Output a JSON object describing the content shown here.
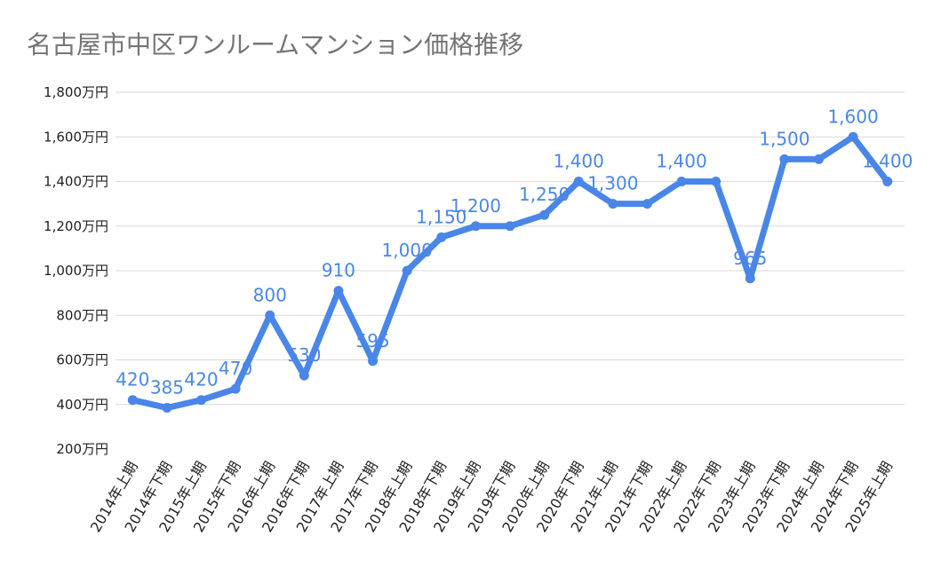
{
  "chart_data": {
    "type": "line",
    "title": "名古屋市中区ワンルームマンション価格推移",
    "xlabel": "",
    "ylabel": "",
    "ylim": [
      200,
      1800
    ],
    "y_ticks": [
      "200万円",
      "400万円",
      "600万円",
      "800万円",
      "1,000万円",
      "1,200万円",
      "1,400万円",
      "1,600万円",
      "1,800万円"
    ],
    "y_tick_values": [
      200,
      400,
      600,
      800,
      1000,
      1200,
      1400,
      1600,
      1800
    ],
    "grid": true,
    "legend": "none",
    "color": "#4a86e8",
    "categories": [
      "2014年上期",
      "2014年下期",
      "2015年上期",
      "2015年下期",
      "2016年上期",
      "2016年下期",
      "2017年上期",
      "2017年下期",
      "2018年上期",
      "2018年下期",
      "2019年上期",
      "2019年下期",
      "2020年上期",
      "2020年下期",
      "2021年上期",
      "2021年下期",
      "2022年上期",
      "2022年下期",
      "2023年上期",
      "2023年下期",
      "2024年上期",
      "2024年下期",
      "2025年上期"
    ],
    "values": [
      420,
      385,
      420,
      470,
      800,
      530,
      910,
      595,
      1000,
      1150,
      1200,
      1200,
      1250,
      1400,
      1300,
      1300,
      1400,
      1400,
      965,
      1500,
      1500,
      1600,
      1400
    ],
    "data_labels": [
      "420",
      "385",
      "420",
      "470",
      "800",
      "530",
      "910",
      "595",
      "1,000",
      "1,150",
      "1,200",
      "",
      "1,250",
      "1,400",
      "1,300",
      "",
      "1,400",
      "",
      "965",
      "1,500",
      "",
      "1,600",
      "1,400"
    ]
  }
}
